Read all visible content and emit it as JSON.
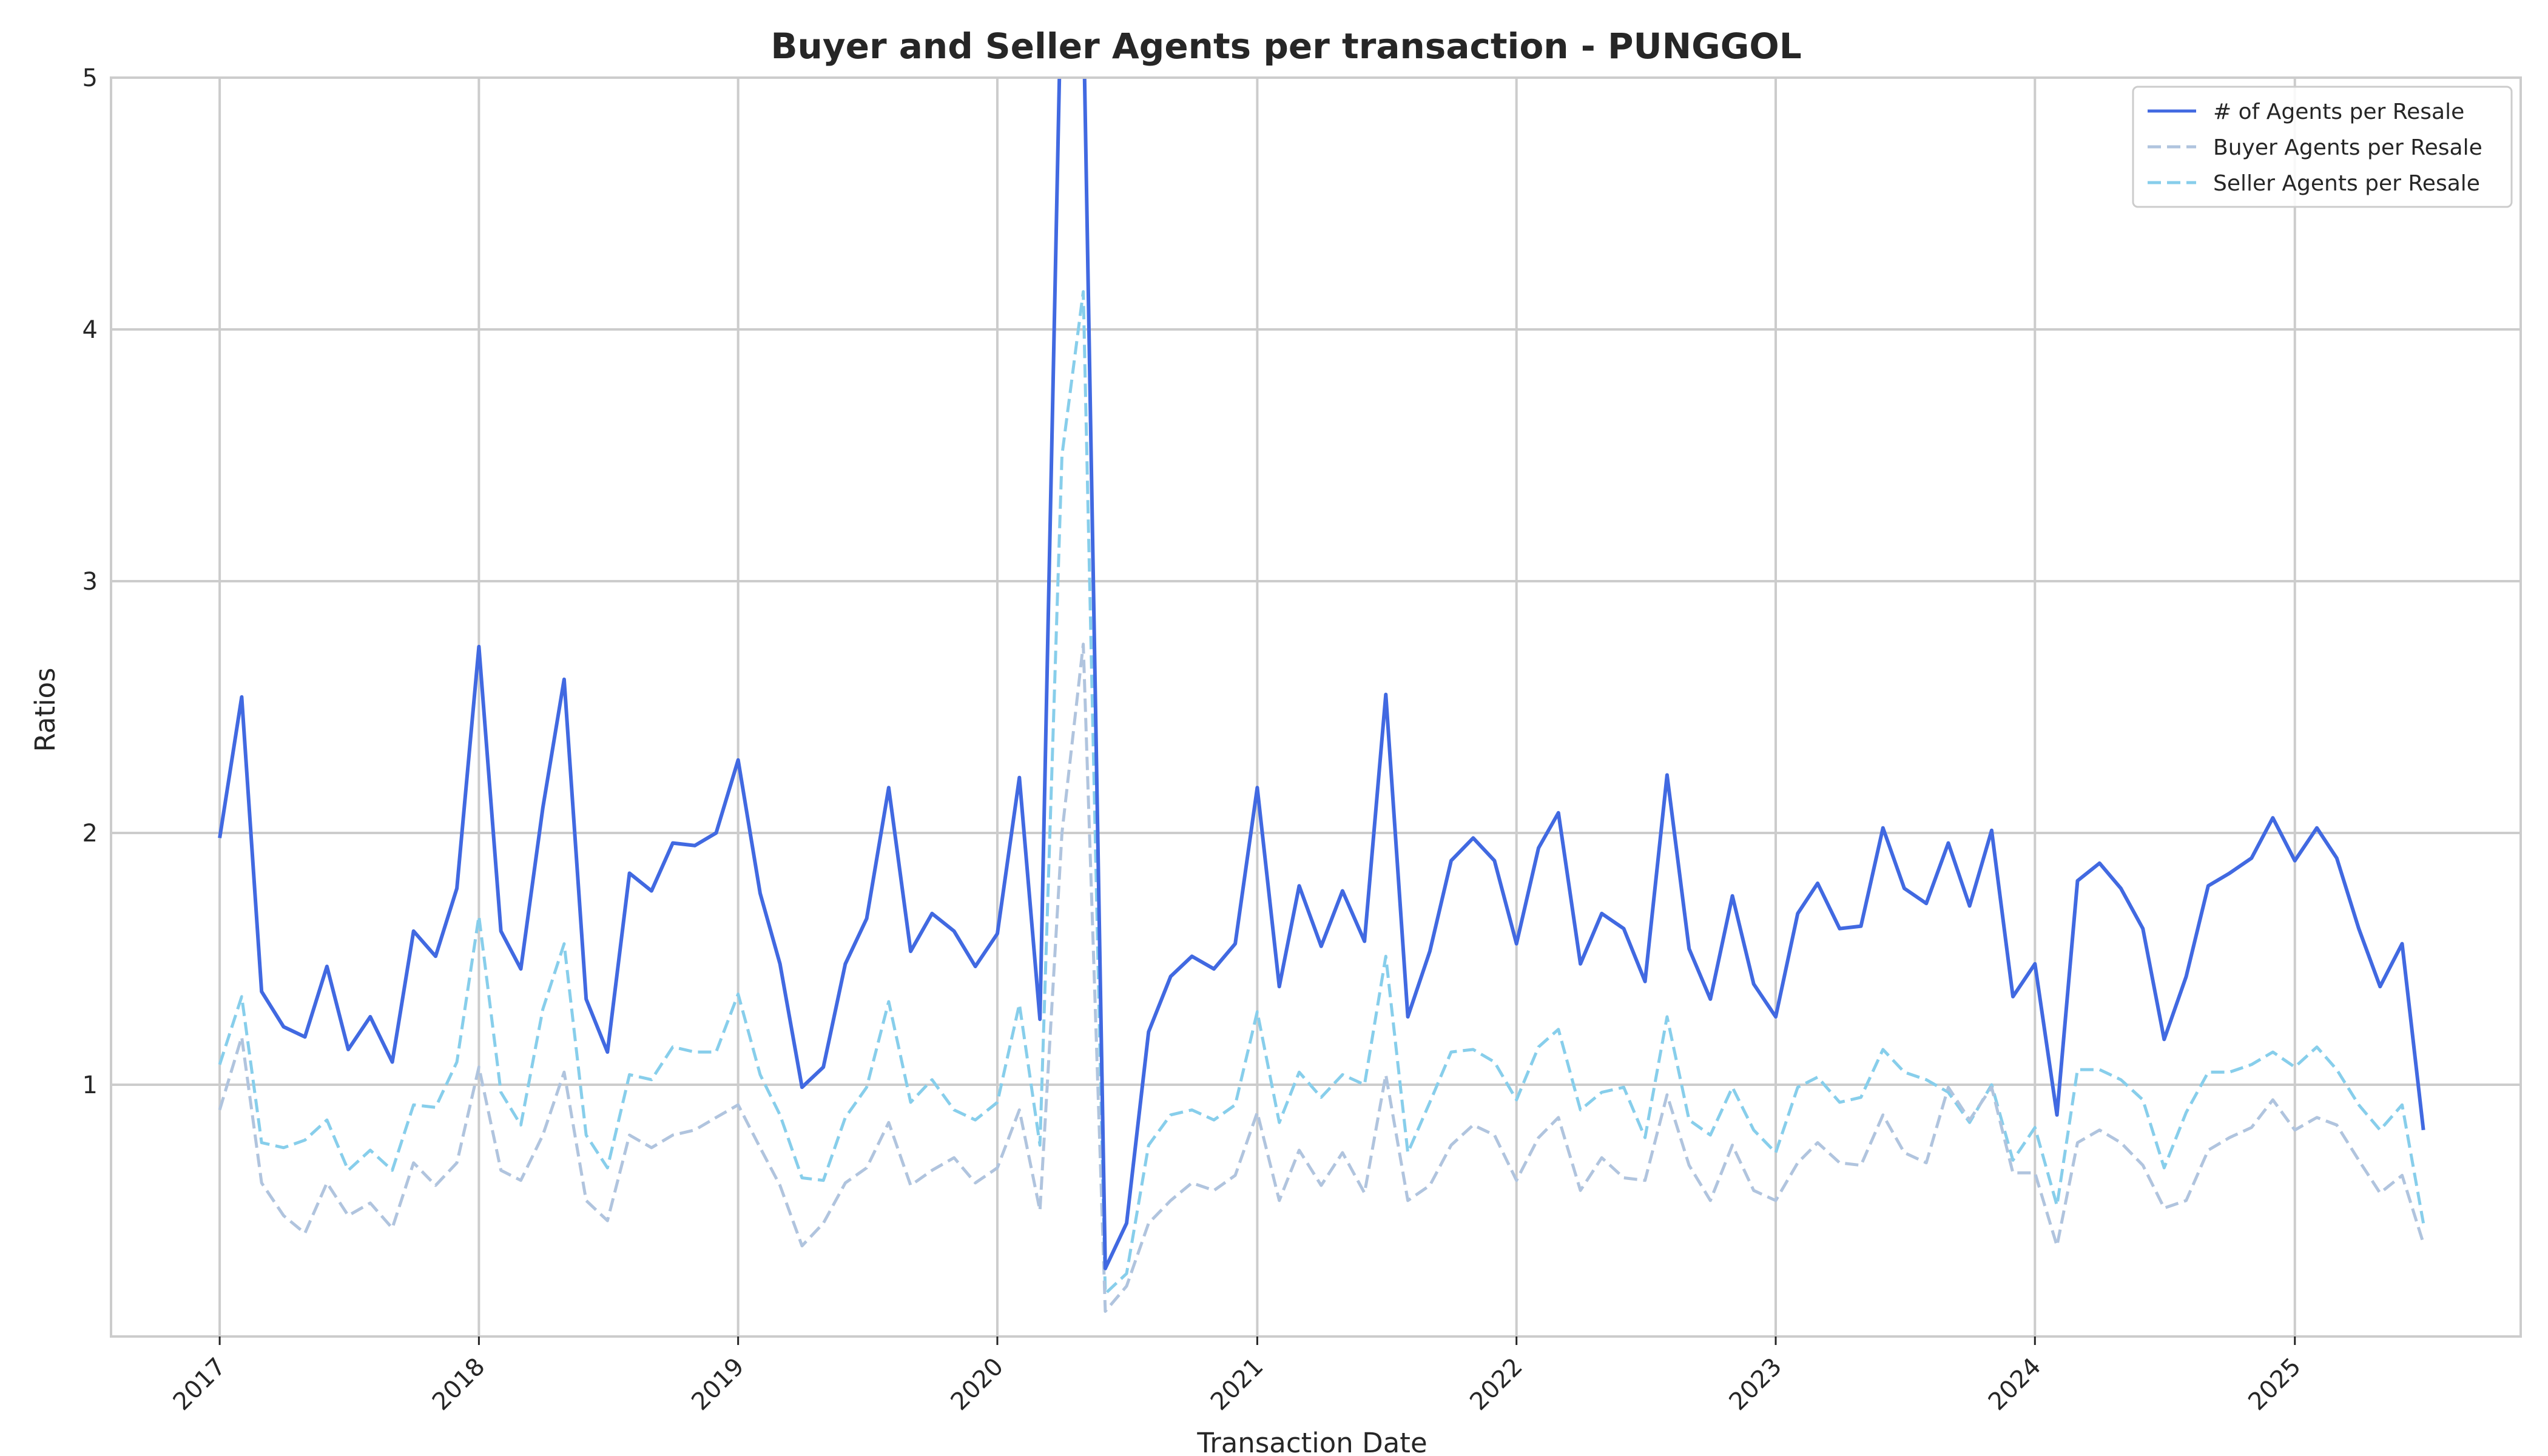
{
  "chart_data": {
    "type": "line",
    "title": "Buyer and Seller Agents per transaction - PUNGGOL",
    "xlabel": "Transaction Date",
    "ylabel": "Ratios",
    "ylim": [
      0,
      5
    ],
    "xlim": [
      "2016-08-01",
      "2025-11-15"
    ],
    "grid": true,
    "legend_position": "top-right",
    "x_ticks": [
      "2017",
      "2018",
      "2019",
      "2020",
      "2021",
      "2022",
      "2023",
      "2024",
      "2025"
    ],
    "y_ticks": [
      "1",
      "2",
      "3",
      "4",
      "5"
    ],
    "x": [
      "2017-01",
      "2017-02",
      "2017-03",
      "2017-04",
      "2017-05",
      "2017-06",
      "2017-07",
      "2017-08",
      "2017-09",
      "2017-10",
      "2017-11",
      "2017-12",
      "2018-01",
      "2018-02",
      "2018-03",
      "2018-04",
      "2018-05",
      "2018-06",
      "2018-07",
      "2018-08",
      "2018-09",
      "2018-10",
      "2018-11",
      "2018-12",
      "2019-01",
      "2019-02",
      "2019-03",
      "2019-04",
      "2019-05",
      "2019-06",
      "2019-07",
      "2019-08",
      "2019-09",
      "2019-10",
      "2019-11",
      "2019-12",
      "2020-01",
      "2020-02",
      "2020-03",
      "2020-04",
      "2020-05",
      "2020-06",
      "2020-07",
      "2020-08",
      "2020-09",
      "2020-10",
      "2020-11",
      "2020-12",
      "2021-01",
      "2021-02",
      "2021-03",
      "2021-04",
      "2021-05",
      "2021-06",
      "2021-07",
      "2021-08",
      "2021-09",
      "2021-10",
      "2021-11",
      "2021-12",
      "2022-01",
      "2022-02",
      "2022-03",
      "2022-04",
      "2022-05",
      "2022-06",
      "2022-07",
      "2022-08",
      "2022-09",
      "2022-10",
      "2022-11",
      "2022-12",
      "2023-01",
      "2023-02",
      "2023-03",
      "2023-04",
      "2023-05",
      "2023-06",
      "2023-07",
      "2023-08",
      "2023-09",
      "2023-10",
      "2023-11",
      "2023-12",
      "2024-01",
      "2024-02",
      "2024-03",
      "2024-04",
      "2024-05",
      "2024-06",
      "2024-07",
      "2024-08",
      "2024-09",
      "2024-10",
      "2024-11",
      "2024-12",
      "2025-01",
      "2025-02",
      "2025-03",
      "2025-04",
      "2025-05",
      "2025-06",
      "2025-07"
    ],
    "series": [
      {
        "name": "# of Agents per Resale",
        "color": "#4169e1",
        "dash": "solid",
        "values": [
          1.98,
          2.54,
          1.37,
          1.23,
          1.19,
          1.47,
          1.14,
          1.27,
          1.09,
          1.61,
          1.51,
          1.78,
          2.74,
          1.61,
          1.46,
          2.1,
          2.61,
          1.34,
          1.13,
          1.84,
          1.77,
          1.96,
          1.95,
          2.0,
          2.29,
          1.76,
          1.48,
          0.99,
          1.07,
          1.48,
          1.66,
          2.18,
          1.53,
          1.68,
          1.61,
          1.47,
          1.6,
          2.22,
          1.26,
          5.5,
          5.3,
          0.27,
          0.45,
          1.21,
          1.43,
          1.51,
          1.46,
          1.56,
          2.18,
          1.39,
          1.79,
          1.55,
          1.77,
          1.57,
          2.55,
          1.27,
          1.53,
          1.89,
          1.98,
          1.89,
          1.56,
          1.94,
          2.08,
          1.48,
          1.68,
          1.62,
          1.41,
          2.23,
          1.54,
          1.34,
          1.75,
          1.4,
          1.27,
          1.68,
          1.8,
          1.62,
          1.63,
          2.02,
          1.78,
          1.72,
          1.96,
          1.71,
          2.01,
          1.35,
          1.48,
          0.88,
          1.81,
          1.88,
          1.78,
          1.62,
          1.18,
          1.43,
          1.79,
          1.84,
          1.9,
          2.06,
          1.89,
          2.02,
          1.9,
          1.62,
          1.39,
          1.56,
          0.82
        ]
      },
      {
        "name": "Buyer Agents per Resale",
        "color": "#b0c4de",
        "dash": "dashed",
        "values": [
          0.9,
          1.19,
          0.61,
          0.48,
          0.41,
          0.61,
          0.48,
          0.53,
          0.43,
          0.69,
          0.6,
          0.69,
          1.07,
          0.66,
          0.62,
          0.8,
          1.05,
          0.54,
          0.46,
          0.8,
          0.75,
          0.8,
          0.82,
          0.87,
          0.92,
          0.75,
          0.6,
          0.36,
          0.45,
          0.61,
          0.67,
          0.85,
          0.6,
          0.66,
          0.71,
          0.61,
          0.67,
          0.9,
          0.5,
          2.0,
          2.75,
          0.1,
          0.2,
          0.45,
          0.54,
          0.61,
          0.58,
          0.64,
          0.89,
          0.54,
          0.74,
          0.6,
          0.73,
          0.57,
          1.04,
          0.54,
          0.6,
          0.76,
          0.84,
          0.8,
          0.62,
          0.79,
          0.87,
          0.58,
          0.71,
          0.63,
          0.62,
          0.96,
          0.68,
          0.54,
          0.76,
          0.58,
          0.54,
          0.69,
          0.77,
          0.69,
          0.68,
          0.88,
          0.73,
          0.69,
          0.99,
          0.86,
          0.99,
          0.65,
          0.65,
          0.36,
          0.77,
          0.82,
          0.77,
          0.68,
          0.51,
          0.54,
          0.74,
          0.79,
          0.83,
          0.94,
          0.82,
          0.87,
          0.84,
          0.7,
          0.57,
          0.64,
          0.37
        ]
      },
      {
        "name": "Seller Agents per Resale",
        "color": "#87ceeb",
        "dash": "dashed",
        "values": [
          1.08,
          1.35,
          0.77,
          0.75,
          0.78,
          0.86,
          0.66,
          0.74,
          0.66,
          0.92,
          0.91,
          1.09,
          1.67,
          0.97,
          0.84,
          1.3,
          1.56,
          0.8,
          0.67,
          1.04,
          1.02,
          1.15,
          1.13,
          1.13,
          1.36,
          1.04,
          0.88,
          0.63,
          0.62,
          0.87,
          0.99,
          1.33,
          0.93,
          1.02,
          0.9,
          0.86,
          0.93,
          1.32,
          0.76,
          3.5,
          4.15,
          0.17,
          0.25,
          0.76,
          0.88,
          0.9,
          0.86,
          0.92,
          1.29,
          0.85,
          1.05,
          0.95,
          1.04,
          1.0,
          1.51,
          0.73,
          0.93,
          1.13,
          1.14,
          1.09,
          0.94,
          1.15,
          1.22,
          0.9,
          0.97,
          0.99,
          0.79,
          1.27,
          0.86,
          0.8,
          0.99,
          0.82,
          0.73,
          0.99,
          1.03,
          0.93,
          0.95,
          1.14,
          1.05,
          1.02,
          0.97,
          0.85,
          1.0,
          0.7,
          0.83,
          0.52,
          1.06,
          1.06,
          1.02,
          0.94,
          0.67,
          0.89,
          1.05,
          1.05,
          1.08,
          1.13,
          1.07,
          1.15,
          1.06,
          0.92,
          0.82,
          0.92,
          0.45
        ]
      }
    ]
  }
}
